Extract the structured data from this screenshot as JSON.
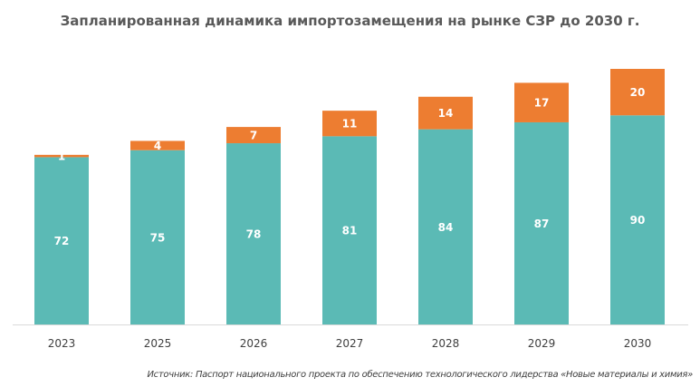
{
  "chart_data": {
    "type": "bar",
    "stacked": true,
    "title": "Запланированная динамика импортозамещения на рынке СЗР до 2030 г.",
    "categories": [
      "2023",
      "2025",
      "2026",
      "2027",
      "2028",
      "2029",
      "2030"
    ],
    "series": [
      {
        "values": [
          72,
          75,
          78,
          81,
          84,
          87,
          90
        ],
        "color": "#5BBAB5"
      },
      {
        "values": [
          1,
          4,
          7,
          11,
          14,
          17,
          20
        ],
        "color": "#ED7D31"
      }
    ],
    "ylim": [
      0,
      110
    ],
    "grid": false,
    "legend": "none",
    "source": "Источник: Паспорт национального проекта по обеспечению технологического лидерства «Новые материалы и химия»"
  }
}
